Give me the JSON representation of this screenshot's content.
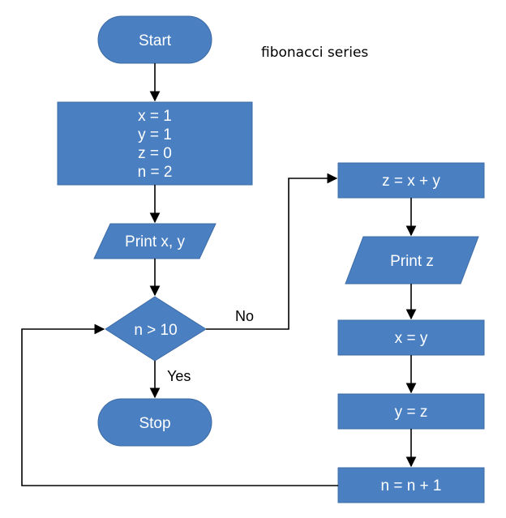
{
  "title": "fibonacci series",
  "nodes": {
    "start": "Start",
    "init": [
      "x = 1",
      "y = 1",
      "z = 0",
      "n = 2"
    ],
    "print_xy": "Print x, y",
    "decision": "n > 10",
    "stop": "Stop",
    "sum": "z = x + y",
    "print_z": "Print z",
    "assign_x": "x = y",
    "assign_y": "y = z",
    "increment": "n = n + 1"
  },
  "edge_labels": {
    "no": "No",
    "yes": "Yes"
  },
  "colors": {
    "fill": "#4a7fc1",
    "text": "#ffffff",
    "line": "#000000"
  }
}
